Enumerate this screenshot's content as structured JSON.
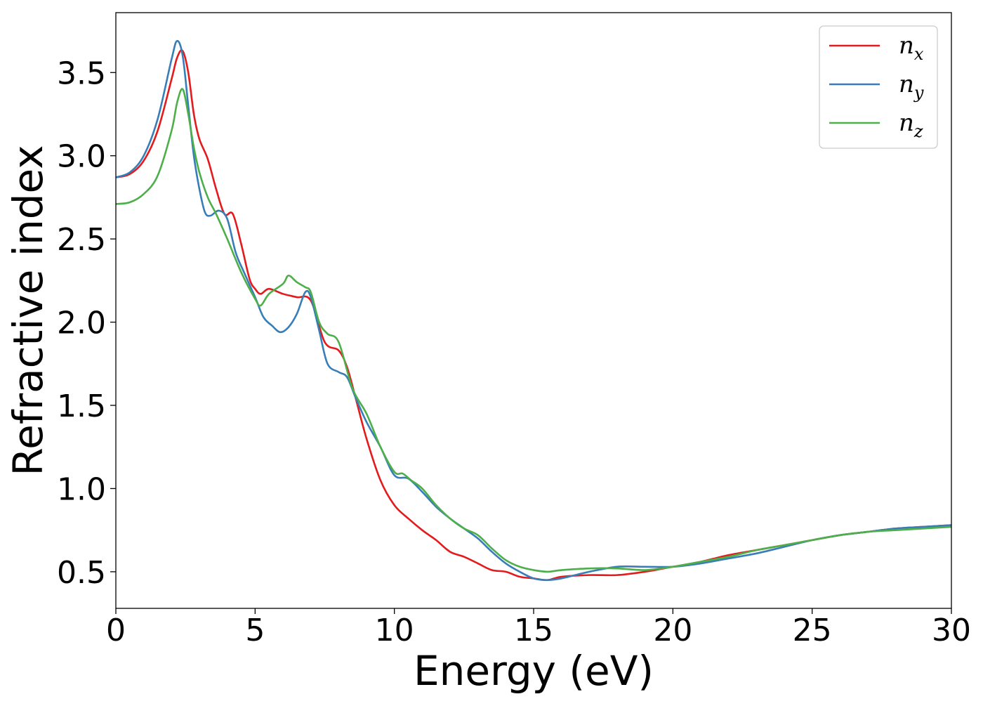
{
  "chart_data": {
    "type": "line",
    "title": "",
    "xlabel": "Energy (eV)",
    "ylabel": "Refractive index",
    "xlim": [
      0,
      30
    ],
    "ylim": [
      0.28,
      3.86
    ],
    "xticks": [
      0,
      5,
      10,
      15,
      20,
      25,
      30
    ],
    "xtick_labels": [
      "0",
      "5",
      "10",
      "15",
      "20",
      "25",
      "30"
    ],
    "yticks": [
      0.5,
      1.0,
      1.5,
      2.0,
      2.5,
      3.0,
      3.5
    ],
    "ytick_labels": [
      "0.5",
      "1.0",
      "1.5",
      "2.0",
      "2.5",
      "3.0",
      "3.5"
    ],
    "grid": false,
    "legend": "top-right",
    "series": [
      {
        "name": "n_x",
        "label_base": "n",
        "label_sub": "x",
        "color": "#e41a1c",
        "x": [
          0,
          0.5,
          1.0,
          1.5,
          2.0,
          2.2,
          2.4,
          2.6,
          2.8,
          3.0,
          3.3,
          3.6,
          3.9,
          4.2,
          4.5,
          4.8,
          5.0,
          5.2,
          5.5,
          6.0,
          6.5,
          7.0,
          7.5,
          8.0,
          8.3,
          8.6,
          9.0,
          9.5,
          10.0,
          10.5,
          11.0,
          11.5,
          12.0,
          12.5,
          13.0,
          13.5,
          14.0,
          14.5,
          15.0,
          15.5,
          16.0,
          17.0,
          18.0,
          19.0,
          20.0,
          21.0,
          22.0,
          23.0,
          24.0,
          25.0,
          26.0,
          27.0,
          28.0,
          29.0,
          30.0
        ],
        "y": [
          2.87,
          2.89,
          2.97,
          3.15,
          3.46,
          3.59,
          3.63,
          3.5,
          3.25,
          3.1,
          2.98,
          2.8,
          2.65,
          2.65,
          2.47,
          2.26,
          2.2,
          2.17,
          2.2,
          2.17,
          2.15,
          2.13,
          1.88,
          1.83,
          1.73,
          1.55,
          1.3,
          1.05,
          0.9,
          0.82,
          0.75,
          0.69,
          0.62,
          0.59,
          0.55,
          0.51,
          0.5,
          0.47,
          0.46,
          0.45,
          0.47,
          0.48,
          0.48,
          0.5,
          0.53,
          0.56,
          0.6,
          0.63,
          0.66,
          0.69,
          0.72,
          0.74,
          0.76,
          0.77,
          0.78
        ]
      },
      {
        "name": "n_y",
        "label_base": "n",
        "label_sub": "y",
        "color": "#377eb8",
        "x": [
          0,
          0.5,
          1.0,
          1.5,
          2.0,
          2.2,
          2.4,
          2.6,
          2.8,
          3.0,
          3.2,
          3.4,
          3.7,
          4.0,
          4.3,
          4.6,
          5.0,
          5.3,
          5.6,
          5.9,
          6.2,
          6.5,
          6.8,
          7.0,
          7.3,
          7.6,
          8.0,
          8.3,
          8.6,
          9.0,
          9.5,
          10.0,
          10.5,
          11.0,
          11.5,
          12.0,
          12.5,
          13.0,
          13.5,
          14.0,
          14.5,
          15.0,
          15.5,
          16.0,
          17.0,
          18.0,
          19.0,
          20.0,
          21.0,
          22.0,
          23.0,
          24.0,
          25.0,
          26.0,
          27.0,
          28.0,
          29.0,
          30.0
        ],
        "y": [
          2.87,
          2.9,
          3.0,
          3.22,
          3.58,
          3.69,
          3.6,
          3.3,
          3.0,
          2.8,
          2.66,
          2.64,
          2.67,
          2.62,
          2.42,
          2.3,
          2.15,
          2.03,
          1.98,
          1.94,
          1.97,
          2.05,
          2.18,
          2.15,
          1.95,
          1.75,
          1.7,
          1.67,
          1.55,
          1.4,
          1.25,
          1.08,
          1.06,
          0.98,
          0.89,
          0.82,
          0.76,
          0.7,
          0.62,
          0.55,
          0.5,
          0.46,
          0.45,
          0.46,
          0.5,
          0.53,
          0.53,
          0.53,
          0.55,
          0.58,
          0.61,
          0.65,
          0.69,
          0.72,
          0.74,
          0.76,
          0.77,
          0.78
        ]
      },
      {
        "name": "n_z",
        "label_base": "n",
        "label_sub": "z",
        "color": "#4daf4a",
        "x": [
          0,
          0.5,
          1.0,
          1.5,
          2.0,
          2.2,
          2.4,
          2.6,
          2.8,
          3.0,
          3.3,
          3.6,
          4.0,
          4.5,
          5.0,
          5.2,
          5.5,
          6.0,
          6.2,
          6.5,
          6.8,
          7.0,
          7.3,
          7.6,
          8.0,
          8.5,
          9.0,
          9.5,
          10.0,
          10.3,
          10.6,
          11.0,
          11.5,
          12.0,
          12.5,
          13.0,
          13.5,
          14.0,
          14.5,
          15.0,
          15.5,
          16.0,
          17.0,
          18.0,
          19.0,
          20.0,
          21.0,
          22.0,
          23.0,
          24.0,
          25.0,
          26.0,
          27.0,
          28.0,
          29.0,
          30.0
        ],
        "y": [
          2.71,
          2.72,
          2.77,
          2.88,
          3.15,
          3.32,
          3.4,
          3.25,
          3.05,
          2.9,
          2.75,
          2.65,
          2.5,
          2.3,
          2.14,
          2.1,
          2.17,
          2.23,
          2.28,
          2.24,
          2.21,
          2.18,
          2.0,
          1.93,
          1.88,
          1.6,
          1.45,
          1.25,
          1.1,
          1.09,
          1.05,
          1.0,
          0.9,
          0.82,
          0.76,
          0.72,
          0.64,
          0.57,
          0.53,
          0.51,
          0.5,
          0.51,
          0.52,
          0.52,
          0.51,
          0.53,
          0.56,
          0.59,
          0.63,
          0.66,
          0.69,
          0.72,
          0.74,
          0.75,
          0.76,
          0.77
        ]
      }
    ]
  }
}
